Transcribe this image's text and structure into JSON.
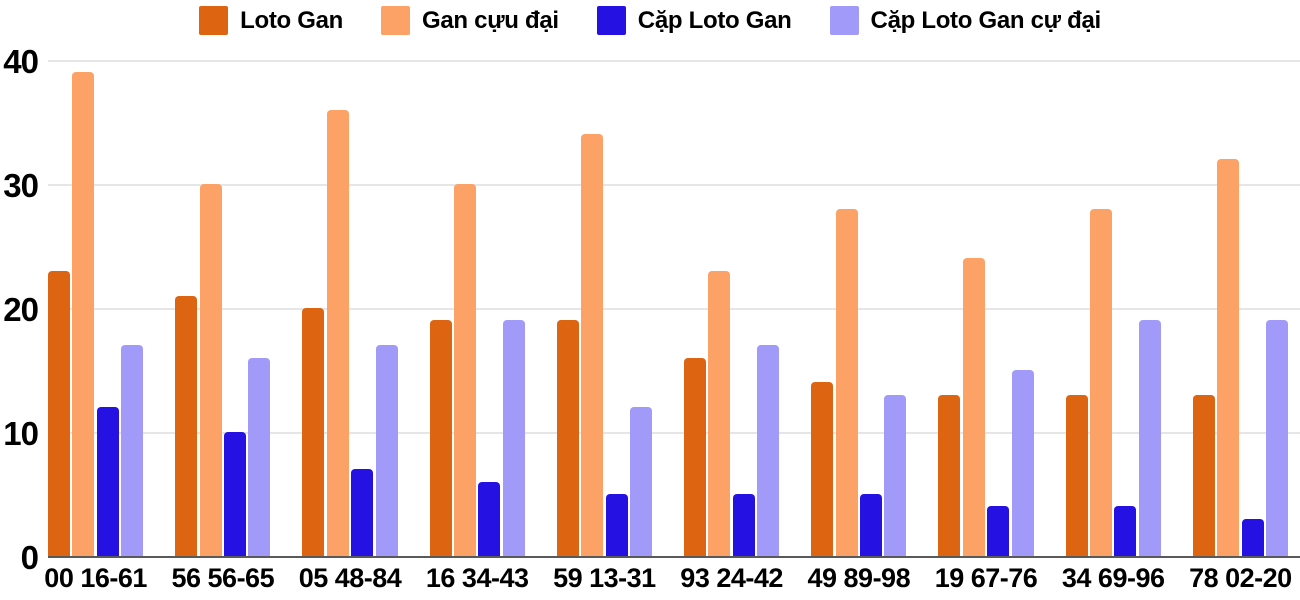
{
  "chart_data": {
    "type": "bar",
    "title": "",
    "xlabel": "",
    "ylabel": "",
    "categories": [
      "00 16-61",
      "56 56-65",
      "05 48-84",
      "16 34-43",
      "59 13-31",
      "93 24-42",
      "49 89-98",
      "19 67-76",
      "34 69-96",
      "78 02-20"
    ],
    "series": [
      {
        "name": "Loto Gan",
        "color": "#dd6511",
        "values": [
          23,
          21,
          20,
          19,
          19,
          16,
          14,
          13,
          13,
          13
        ]
      },
      {
        "name": "Gan cựu đại",
        "color": "#fca267",
        "values": [
          39,
          30,
          36,
          30,
          34,
          23,
          28,
          24,
          28,
          32
        ]
      },
      {
        "name": "Cặp Loto Gan",
        "color": "#2512e2",
        "values": [
          12,
          10,
          7,
          6,
          5,
          5,
          5,
          4,
          4,
          3
        ]
      },
      {
        "name": "Cặp Loto Gan cự đại",
        "color": "#a29af8",
        "values": [
          17,
          16,
          17,
          19,
          12,
          17,
          13,
          15,
          19,
          19
        ]
      }
    ],
    "ylim": [
      0,
      40
    ],
    "yticks": [
      0,
      10,
      20,
      30,
      40
    ],
    "grid": true,
    "legend_position": "top"
  },
  "colors": {
    "background": "#ffffff",
    "gridline": "#e6e6e6",
    "axis_line": "#595959",
    "label_text": "#000000"
  }
}
